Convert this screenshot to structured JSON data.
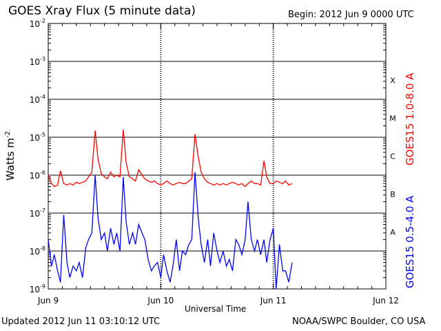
{
  "header": {
    "title": "GOES Xray Flux (5 minute data)",
    "begin": "Begin:  2012 Jun 9 0000 UTC"
  },
  "footer": {
    "updated": "Updated 2012 Jun 11 03:10:12 UTC",
    "credit": "NOAA/SWPC Boulder, CO USA"
  },
  "colors": {
    "long_channel": "#ff0000",
    "short_channel": "#0000ff",
    "grid": "#000000",
    "background": "#ffffff"
  },
  "chart_data": {
    "type": "line",
    "title": "GOES Xray Flux (5 minute data)",
    "xlabel": "Universal Time",
    "ylabel": "Watts m",
    "ylabel_sup": "-2",
    "yscale": "log",
    "ylim": [
      1e-09,
      0.01
    ],
    "xlim_hours": [
      0,
      72
    ],
    "x_ticks": [
      {
        "h": 0,
        "label": "Jun 9"
      },
      {
        "h": 24,
        "label": "Jun 10"
      },
      {
        "h": 48,
        "label": "Jun 11"
      },
      {
        "h": 72,
        "label": "Jun 12"
      }
    ],
    "y_ticks": [
      {
        "exp": -9,
        "label": "10",
        "sup": "-9"
      },
      {
        "exp": -8,
        "label": "10",
        "sup": "-8"
      },
      {
        "exp": -7,
        "label": "10",
        "sup": "-7"
      },
      {
        "exp": -6,
        "label": "10",
        "sup": "-6"
      },
      {
        "exp": -5,
        "label": "10",
        "sup": "-5"
      },
      {
        "exp": -4,
        "label": "10",
        "sup": "-4"
      },
      {
        "exp": -3,
        "label": "10",
        "sup": "-3"
      },
      {
        "exp": -2,
        "label": "10",
        "sup": "-2"
      }
    ],
    "flare_classes": [
      {
        "label": "A",
        "exp": -8
      },
      {
        "label": "B",
        "exp": -7
      },
      {
        "label": "C",
        "exp": -6
      },
      {
        "label": "M",
        "exp": -5
      },
      {
        "label": "X",
        "exp": -4
      }
    ],
    "grid": "horizontal solid at each decade; dotted vertical at each day",
    "series": [
      {
        "name": "GOES15 1.0-8.0 A",
        "x": [
          0,
          0.7,
          1.3,
          2,
          2.6,
          3.3,
          4,
          4.6,
          5.3,
          6,
          6.6,
          7.3,
          8,
          8.6,
          9.3,
          10,
          10.6,
          11.3,
          12,
          12.6,
          13.3,
          14,
          14.6,
          15.3,
          16,
          16.6,
          17.3,
          18,
          18.6,
          19.3,
          20,
          20.6,
          21.3,
          22,
          22.6,
          23.3,
          24,
          24.6,
          25.3,
          26,
          26.6,
          27.3,
          28,
          28.6,
          29.3,
          30,
          30.6,
          31.3,
          32,
          32.6,
          33.3,
          34,
          34.6,
          35.3,
          36,
          36.6,
          37.3,
          38,
          38.6,
          39.3,
          40,
          40.6,
          41.3,
          42,
          42.6,
          43.3,
          44,
          44.6,
          45.3,
          46,
          46.6,
          47.3,
          48,
          48.6,
          49.3,
          50,
          50.6,
          51.3,
          52
        ],
        "y": [
          1e-06,
          6e-07,
          5e-07,
          5.5e-07,
          1.3e-06,
          6e-07,
          5.5e-07,
          6e-07,
          5.5e-07,
          6.5e-07,
          6e-07,
          6.5e-07,
          7e-07,
          9e-07,
          1.2e-06,
          1.5e-05,
          2.8e-06,
          1.1e-06,
          9e-07,
          8e-07,
          1.2e-06,
          9e-07,
          1e-06,
          9e-07,
          1.6e-05,
          2.2e-06,
          9e-07,
          8e-07,
          7e-07,
          1.4e-06,
          1e-06,
          8e-07,
          7e-07,
          6.5e-07,
          7e-07,
          6e-07,
          5.5e-07,
          6e-07,
          7e-07,
          6e-07,
          5.5e-07,
          6e-07,
          6.5e-07,
          6e-07,
          6e-07,
          7e-07,
          8e-07,
          1.2e-05,
          3e-06,
          1.2e-06,
          8e-07,
          6.5e-07,
          6e-07,
          5.5e-07,
          6e-07,
          5.5e-07,
          6e-07,
          5.5e-07,
          6e-07,
          6.5e-07,
          6e-07,
          5.5e-07,
          6e-07,
          5e-07,
          6e-07,
          7e-07,
          6e-07,
          6e-07,
          5.5e-07,
          2.4e-06,
          9e-07,
          6e-07,
          6e-07,
          7e-07,
          6.5e-07,
          6e-07,
          7e-07,
          5.5e-07,
          6e-07
        ]
      },
      {
        "name": "GOES15 0.5-4.0 A",
        "x": [
          0,
          0.7,
          1.3,
          2,
          2.6,
          3.3,
          4,
          4.6,
          5.3,
          6,
          6.6,
          7.3,
          8,
          8.6,
          9.3,
          10,
          10.6,
          11.3,
          12,
          12.6,
          13.3,
          14,
          14.6,
          15.3,
          16,
          16.6,
          17.3,
          18,
          18.6,
          19.3,
          20,
          20.6,
          21.3,
          22,
          22.6,
          23.3,
          24,
          24.6,
          25.3,
          26,
          26.6,
          27.3,
          28,
          28.6,
          29.3,
          30,
          30.6,
          31.3,
          32,
          32.6,
          33.3,
          34,
          34.6,
          35.3,
          36,
          36.6,
          37.3,
          38,
          38.6,
          39.3,
          40,
          40.6,
          41.3,
          42,
          42.6,
          43.3,
          44,
          44.6,
          45.3,
          46,
          46.6,
          47.3,
          48,
          48.6,
          49.3,
          50,
          50.6,
          51.3,
          52
        ],
        "y": [
          2e-08,
          4e-09,
          8e-09,
          3e-09,
          1.5e-09,
          9e-08,
          5e-09,
          2e-09,
          4e-09,
          3e-09,
          5e-09,
          2e-09,
          1.2e-08,
          2e-08,
          3e-08,
          1e-06,
          8e-08,
          2e-08,
          3e-08,
          1e-08,
          4e-08,
          1.5e-08,
          3e-08,
          1e-08,
          9e-07,
          6e-08,
          1.5e-08,
          3e-08,
          1.5e-08,
          5e-08,
          3e-08,
          2e-08,
          6e-09,
          3e-09,
          4e-09,
          5e-09,
          2e-09,
          8e-09,
          3e-09,
          1.5e-09,
          4e-09,
          2e-08,
          3e-09,
          1e-08,
          8e-09,
          1.5e-08,
          2e-08,
          1.2e-06,
          7e-08,
          1.5e-08,
          5e-09,
          2e-08,
          4e-09,
          3e-08,
          1e-08,
          5e-09,
          1e-08,
          4e-09,
          6e-09,
          3e-09,
          2e-08,
          1.5e-08,
          8e-09,
          2e-08,
          2e-07,
          2e-08,
          1e-08,
          2e-08,
          8e-09,
          2e-08,
          5e-09,
          2e-08,
          4e-08,
          1e-09,
          1.5e-08,
          3e-09,
          3e-09,
          1.5e-09,
          5e-09
        ]
      }
    ]
  }
}
